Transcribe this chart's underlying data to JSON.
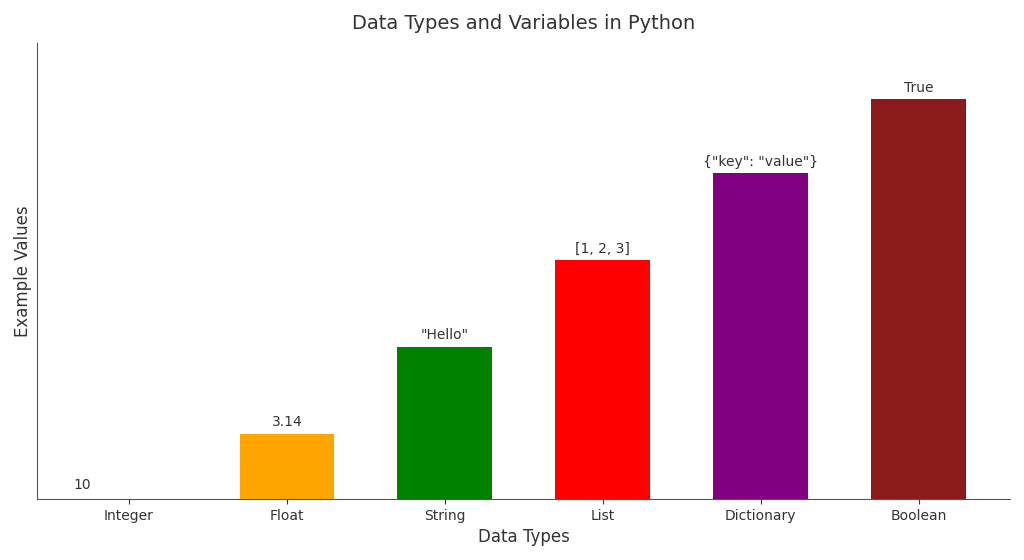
{
  "categories": [
    "Integer",
    "Float",
    "String",
    "List",
    "Dictionary",
    "Boolean"
  ],
  "values": [
    0,
    1.5,
    3.5,
    5.5,
    7.5,
    9.2
  ],
  "bar_colors": [
    "#ffffff",
    "#FFA500",
    "#008000",
    "#FF0000",
    "#800080",
    "#8B1A1A"
  ],
  "annotations": [
    "10",
    "3.14",
    "\"Hello\"",
    "[1, 2, 3]",
    "{\"key\": \"value\"}",
    "True"
  ],
  "annot_offsets": [
    0.15,
    0.15,
    0.15,
    0.15,
    0.15,
    0.15
  ],
  "title": "Data Types and Variables in Python",
  "xlabel": "Data Types",
  "ylabel": "Example Values",
  "ylim": [
    0,
    10.5
  ],
  "title_fontsize": 14,
  "label_fontsize": 12,
  "annotation_fontsize": 10,
  "background_color": "#ffffff",
  "figwidth": 10.24,
  "figheight": 5.6,
  "dpi": 100
}
